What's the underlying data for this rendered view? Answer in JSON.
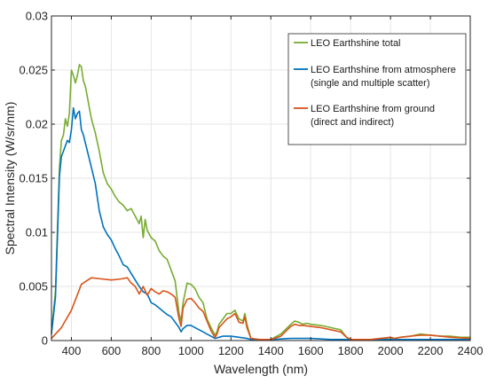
{
  "chart_data": {
    "type": "line",
    "title": "",
    "xlabel": "Wavelength (nm)",
    "ylabel": "Spectral Intensity (W/sr/nm)",
    "xlim": [
      300,
      2400
    ],
    "ylim": [
      0,
      0.03
    ],
    "grid": true,
    "legend_position": "top-right",
    "x_ticks": [
      400,
      600,
      800,
      1000,
      1200,
      1400,
      1600,
      1800,
      2000,
      2200,
      2400
    ],
    "y_ticks": [
      0,
      0.005,
      0.01,
      0.015,
      0.02,
      0.025,
      0.03
    ],
    "x_tick_labels": [
      "400",
      "600",
      "800",
      "1000",
      "1200",
      "1400",
      "1600",
      "1800",
      "2000",
      "2200",
      "2400"
    ],
    "y_tick_labels": [
      "0",
      "0.005",
      "0.01",
      "0.015",
      "0.02",
      "0.025",
      "0.03"
    ],
    "series": [
      {
        "name": "LEO Earthshine total",
        "legend_lines": [
          "LEO Earthshine total"
        ],
        "color": "#77ac30",
        "x": [
          300,
          320,
          340,
          350,
          360,
          370,
          380,
          390,
          400,
          410,
          420,
          430,
          440,
          450,
          460,
          470,
          480,
          500,
          520,
          540,
          560,
          580,
          600,
          620,
          640,
          660,
          680,
          700,
          720,
          740,
          750,
          760,
          770,
          780,
          800,
          820,
          840,
          860,
          880,
          900,
          920,
          940,
          950,
          960,
          980,
          1000,
          1020,
          1040,
          1060,
          1080,
          1100,
          1120,
          1130,
          1140,
          1160,
          1180,
          1200,
          1220,
          1240,
          1260,
          1270,
          1280,
          1300,
          1340,
          1360,
          1380,
          1400,
          1420,
          1450,
          1500,
          1520,
          1540,
          1560,
          1580,
          1600,
          1650,
          1700,
          1750,
          1780,
          1800,
          1850,
          1900,
          1950,
          2000,
          2020,
          2050,
          2100,
          2150,
          2200,
          2250,
          2300,
          2350,
          2400
        ],
        "y": [
          0.0008,
          0.0045,
          0.016,
          0.0185,
          0.019,
          0.0205,
          0.0198,
          0.021,
          0.025,
          0.0245,
          0.0238,
          0.0245,
          0.0255,
          0.0253,
          0.024,
          0.0235,
          0.0225,
          0.0205,
          0.0192,
          0.0175,
          0.0155,
          0.0145,
          0.014,
          0.0133,
          0.0128,
          0.0125,
          0.012,
          0.0122,
          0.0115,
          0.0108,
          0.0115,
          0.0095,
          0.0112,
          0.0102,
          0.0095,
          0.0092,
          0.0083,
          0.0078,
          0.0075,
          0.0065,
          0.0055,
          0.0025,
          0.0018,
          0.0035,
          0.0053,
          0.0052,
          0.0048,
          0.004,
          0.0035,
          0.002,
          0.0012,
          0.0005,
          0.0008,
          0.0015,
          0.002,
          0.0025,
          0.0025,
          0.0028,
          0.002,
          0.0018,
          0.0025,
          0.0015,
          0.0002,
          0.0001,
          0.0001,
          0.0001,
          0.0001,
          0.0003,
          0.0006,
          0.0015,
          0.0018,
          0.0017,
          0.0015,
          0.0016,
          0.0015,
          0.0014,
          0.0012,
          0.001,
          0.0003,
          0.0001,
          0.0001,
          0.0001,
          0.0001,
          0.0003,
          0.0002,
          0.0003,
          0.0004,
          0.0006,
          0.0005,
          0.0004,
          0.0004,
          0.0003,
          0.0003
        ]
      },
      {
        "name": "LEO Earthshine from atmosphere",
        "legend_lines": [
          "LEO Earthshine from atmosphere",
          "(single and multiple scatter)"
        ],
        "color": "#0072bd",
        "x": [
          300,
          320,
          340,
          350,
          360,
          370,
          380,
          390,
          400,
          410,
          420,
          430,
          440,
          450,
          460,
          480,
          500,
          520,
          540,
          560,
          580,
          600,
          620,
          640,
          660,
          680,
          700,
          720,
          740,
          760,
          780,
          800,
          820,
          840,
          860,
          880,
          900,
          920,
          940,
          950,
          960,
          980,
          1000,
          1020,
          1040,
          1060,
          1080,
          1100,
          1120,
          1140,
          1160,
          1200,
          1240,
          1280,
          1300,
          1400,
          1500,
          1600,
          1700,
          1800,
          2000,
          2200,
          2400
        ],
        "y": [
          0.0006,
          0.004,
          0.0152,
          0.017,
          0.0175,
          0.018,
          0.0185,
          0.0183,
          0.0195,
          0.0215,
          0.0205,
          0.021,
          0.0212,
          0.0195,
          0.019,
          0.0175,
          0.016,
          0.0145,
          0.012,
          0.0105,
          0.0098,
          0.0093,
          0.0085,
          0.0078,
          0.007,
          0.0068,
          0.0062,
          0.0056,
          0.005,
          0.0045,
          0.0043,
          0.0035,
          0.0033,
          0.003,
          0.0027,
          0.0024,
          0.0022,
          0.0017,
          0.0012,
          0.0008,
          0.0011,
          0.0014,
          0.0014,
          0.0012,
          0.001,
          0.0008,
          0.0006,
          0.0004,
          0.0002,
          0.0003,
          0.0004,
          0.0004,
          0.0003,
          0.0002,
          0.0001,
          0.0001,
          0.0002,
          0.0002,
          0.0001,
          0.0001,
          0.0001,
          0.0001,
          0.0001
        ]
      },
      {
        "name": "LEO Earthshine from ground",
        "legend_lines": [
          "LEO Earthshine from ground",
          "(direct and indirect)"
        ],
        "color": "#d95319",
        "x": [
          300,
          350,
          400,
          450,
          500,
          550,
          600,
          650,
          680,
          700,
          720,
          740,
          760,
          780,
          800,
          820,
          840,
          860,
          880,
          900,
          920,
          940,
          950,
          960,
          980,
          1000,
          1020,
          1040,
          1060,
          1080,
          1100,
          1120,
          1130,
          1140,
          1160,
          1180,
          1200,
          1220,
          1240,
          1260,
          1270,
          1280,
          1300,
          1340,
          1400,
          1450,
          1500,
          1520,
          1540,
          1560,
          1600,
          1650,
          1700,
          1750,
          1780,
          1800,
          1900,
          2000,
          2020,
          2050,
          2100,
          2150,
          2200,
          2250,
          2300,
          2400
        ],
        "y": [
          0.0002,
          0.0012,
          0.0028,
          0.0052,
          0.0058,
          0.0057,
          0.0056,
          0.0057,
          0.0058,
          0.0053,
          0.005,
          0.0043,
          0.005,
          0.0042,
          0.0048,
          0.0045,
          0.0043,
          0.0046,
          0.0045,
          0.0043,
          0.004,
          0.002,
          0.0013,
          0.003,
          0.0038,
          0.0039,
          0.0035,
          0.003,
          0.0027,
          0.0018,
          0.0009,
          0.0003,
          0.0006,
          0.0012,
          0.0016,
          0.002,
          0.0022,
          0.0025,
          0.0017,
          0.0016,
          0.0022,
          0.0012,
          0.0002,
          0.0001,
          0.0001,
          0.0004,
          0.0013,
          0.0015,
          0.0014,
          0.0014,
          0.0013,
          0.0012,
          0.001,
          0.0008,
          0.0003,
          0.0001,
          0.0001,
          0.0003,
          0.0002,
          0.0003,
          0.0004,
          0.0005,
          0.0005,
          0.0004,
          0.0003,
          0.0002
        ]
      }
    ]
  }
}
